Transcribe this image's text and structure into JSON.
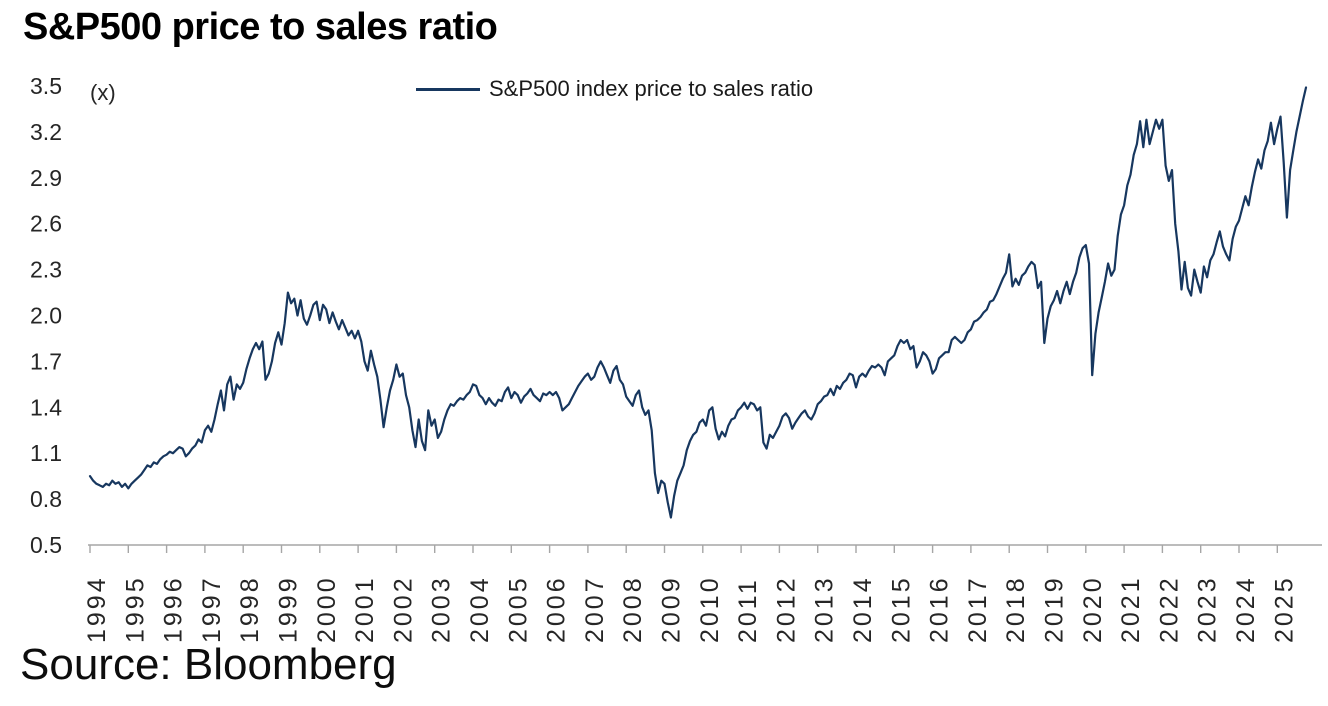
{
  "title": "S&P500 price to sales ratio",
  "source": "Source: Bloomberg",
  "legend": {
    "label": "S&P500 index price to sales ratio"
  },
  "y_axis": {
    "unit_label": "(x)",
    "ticks": [
      "3.5",
      "3.2",
      "2.9",
      "2.6",
      "2.3",
      "2.0",
      "1.7",
      "1.4",
      "1.1",
      "0.8",
      "0.5"
    ]
  },
  "x_axis": {
    "years": [
      "1994",
      "1995",
      "1996",
      "1997",
      "1998",
      "1999",
      "2000",
      "2001",
      "2002",
      "2003",
      "2004",
      "2005",
      "2006",
      "2007",
      "2008",
      "2009",
      "2010",
      "2011",
      "2012",
      "2013",
      "2014",
      "2015",
      "2016",
      "2017",
      "2018",
      "2019",
      "2020",
      "2021",
      "2022",
      "2023",
      "2024",
      "2025"
    ]
  },
  "chart_data": {
    "type": "line",
    "title": "S&P500 price to sales ratio",
    "xlabel": "",
    "ylabel": "(x)",
    "ylim": [
      0.5,
      3.5
    ],
    "y_tick_step": 0.3,
    "x_range": [
      1994,
      2025.8
    ],
    "grid": false,
    "legend_position": "top",
    "line_color": "#17375f",
    "axis_color": "#a6a6a6",
    "tick_label_color": "#262626",
    "frequency": "monthly",
    "start_year": 1994,
    "series": [
      {
        "name": "S&P500 index price to sales ratio",
        "values": [
          0.95,
          0.92,
          0.9,
          0.89,
          0.88,
          0.9,
          0.89,
          0.92,
          0.9,
          0.91,
          0.88,
          0.9,
          0.87,
          0.9,
          0.92,
          0.94,
          0.96,
          0.99,
          1.02,
          1.01,
          1.04,
          1.03,
          1.06,
          1.08,
          1.09,
          1.11,
          1.1,
          1.12,
          1.14,
          1.13,
          1.08,
          1.1,
          1.13,
          1.15,
          1.19,
          1.17,
          1.25,
          1.28,
          1.24,
          1.32,
          1.42,
          1.51,
          1.38,
          1.55,
          1.6,
          1.45,
          1.55,
          1.52,
          1.56,
          1.65,
          1.72,
          1.78,
          1.82,
          1.78,
          1.83,
          1.58,
          1.62,
          1.7,
          1.82,
          1.89,
          1.81,
          1.95,
          2.15,
          2.08,
          2.11,
          2.0,
          2.1,
          1.98,
          1.94,
          2.0,
          2.07,
          2.09,
          1.97,
          2.07,
          2.04,
          1.95,
          2.02,
          1.96,
          1.91,
          1.97,
          1.92,
          1.87,
          1.9,
          1.85,
          1.9,
          1.83,
          1.7,
          1.64,
          1.77,
          1.68,
          1.6,
          1.45,
          1.27,
          1.4,
          1.51,
          1.58,
          1.68,
          1.6,
          1.62,
          1.48,
          1.4,
          1.25,
          1.14,
          1.32,
          1.18,
          1.12,
          1.38,
          1.28,
          1.32,
          1.2,
          1.24,
          1.32,
          1.38,
          1.42,
          1.41,
          1.44,
          1.46,
          1.45,
          1.48,
          1.5,
          1.55,
          1.54,
          1.48,
          1.46,
          1.42,
          1.46,
          1.43,
          1.41,
          1.45,
          1.44,
          1.5,
          1.53,
          1.46,
          1.5,
          1.48,
          1.43,
          1.47,
          1.49,
          1.52,
          1.48,
          1.46,
          1.44,
          1.49,
          1.48,
          1.5,
          1.48,
          1.5,
          1.46,
          1.38,
          1.4,
          1.42,
          1.46,
          1.5,
          1.54,
          1.57,
          1.6,
          1.62,
          1.58,
          1.6,
          1.66,
          1.7,
          1.66,
          1.61,
          1.56,
          1.64,
          1.67,
          1.58,
          1.55,
          1.47,
          1.44,
          1.41,
          1.48,
          1.51,
          1.4,
          1.35,
          1.38,
          1.25,
          0.97,
          0.84,
          0.92,
          0.9,
          0.78,
          0.68,
          0.82,
          0.92,
          0.97,
          1.02,
          1.12,
          1.18,
          1.22,
          1.24,
          1.3,
          1.32,
          1.28,
          1.38,
          1.4,
          1.26,
          1.19,
          1.24,
          1.21,
          1.28,
          1.32,
          1.33,
          1.38,
          1.4,
          1.43,
          1.39,
          1.43,
          1.42,
          1.38,
          1.4,
          1.17,
          1.13,
          1.22,
          1.2,
          1.24,
          1.28,
          1.34,
          1.36,
          1.33,
          1.26,
          1.3,
          1.33,
          1.36,
          1.38,
          1.34,
          1.32,
          1.36,
          1.42,
          1.44,
          1.47,
          1.48,
          1.52,
          1.48,
          1.54,
          1.52,
          1.56,
          1.58,
          1.62,
          1.61,
          1.53,
          1.6,
          1.62,
          1.6,
          1.64,
          1.67,
          1.66,
          1.68,
          1.66,
          1.61,
          1.7,
          1.72,
          1.74,
          1.8,
          1.84,
          1.82,
          1.84,
          1.78,
          1.8,
          1.66,
          1.7,
          1.76,
          1.74,
          1.7,
          1.62,
          1.65,
          1.72,
          1.74,
          1.76,
          1.76,
          1.84,
          1.86,
          1.84,
          1.82,
          1.84,
          1.89,
          1.91,
          1.96,
          1.97,
          1.99,
          2.02,
          2.04,
          2.09,
          2.1,
          2.14,
          2.19,
          2.24,
          2.28,
          2.4,
          2.19,
          2.24,
          2.2,
          2.26,
          2.28,
          2.32,
          2.35,
          2.33,
          2.18,
          2.22,
          1.82,
          1.98,
          2.06,
          2.1,
          2.16,
          2.08,
          2.16,
          2.22,
          2.14,
          2.22,
          2.28,
          2.38,
          2.44,
          2.46,
          2.34,
          1.61,
          1.88,
          2.02,
          2.12,
          2.22,
          2.34,
          2.26,
          2.3,
          2.52,
          2.66,
          2.72,
          2.85,
          2.92,
          3.05,
          3.12,
          3.27,
          3.1,
          3.28,
          3.12,
          3.2,
          3.28,
          3.22,
          3.28,
          2.98,
          2.88,
          2.95,
          2.6,
          2.42,
          2.17,
          2.35,
          2.18,
          2.13,
          2.3,
          2.22,
          2.15,
          2.32,
          2.25,
          2.36,
          2.4,
          2.48,
          2.55,
          2.45,
          2.4,
          2.36,
          2.5,
          2.58,
          2.62,
          2.7,
          2.78,
          2.72,
          2.84,
          2.94,
          3.02,
          2.96,
          3.08,
          3.14,
          3.26,
          3.12,
          3.22,
          3.3,
          3.0,
          2.64,
          2.95,
          3.08,
          3.2,
          3.3,
          3.4,
          3.49
        ]
      }
    ]
  }
}
